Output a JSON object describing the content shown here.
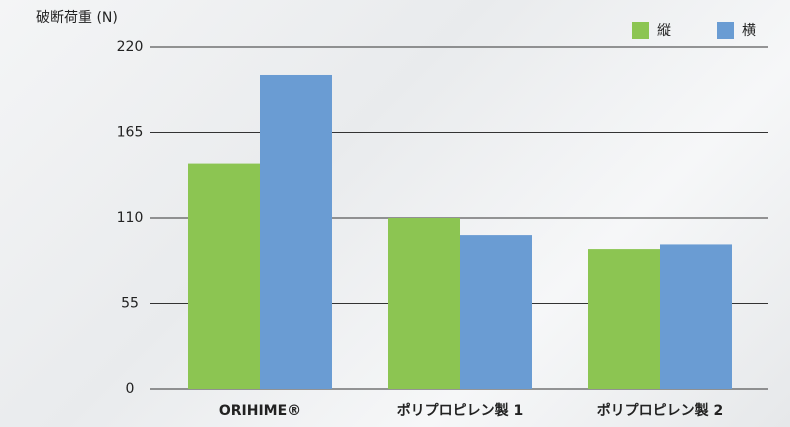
{
  "chart_data": {
    "type": "bar",
    "y_label": "破断荷重 (N)",
    "categories": [
      "ORIHIME®",
      "ポリプロピレン製 1",
      "ポリプロピレン製 2"
    ],
    "series": [
      {
        "name": "縦",
        "color": "#8cc552",
        "values": [
          145,
          110,
          90
        ]
      },
      {
        "name": "横",
        "color": "#6a9cd3",
        "values": [
          202,
          99,
          93
        ]
      }
    ],
    "ylim": [
      0,
      220
    ],
    "yticks": [
      0,
      55,
      110,
      165,
      220
    ],
    "grid": true,
    "legend": "top-right"
  }
}
